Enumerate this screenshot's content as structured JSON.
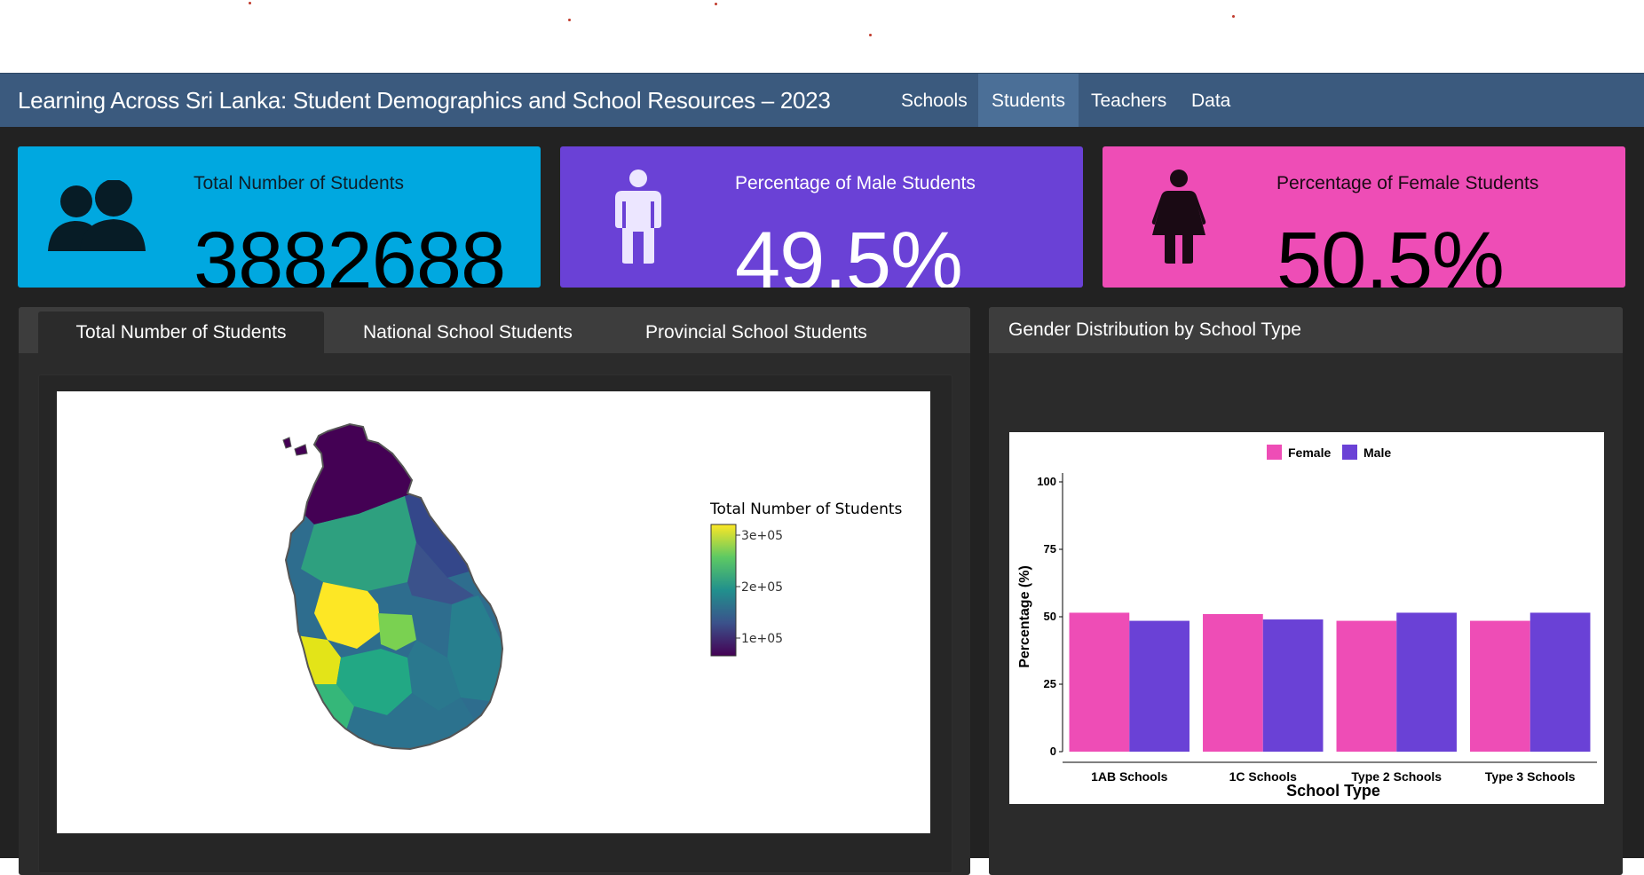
{
  "app": {
    "title": "Learning Across Sri Lanka: Student Demographics and School Resources – 2023",
    "nav": [
      "Schools",
      "Students",
      "Teachers",
      "Data"
    ],
    "active_nav": "Students"
  },
  "value_boxes": [
    {
      "title": "Total Number of Students",
      "value": "3882688",
      "color": "#00a8e0",
      "icon": "people-icon"
    },
    {
      "title": "Percentage of Male Students",
      "value": "49.5%",
      "color": "#6a41d6",
      "icon": "male-person-icon"
    },
    {
      "title": "Percentage of Female Students",
      "value": "50.5%",
      "color": "#ee4db6",
      "icon": "female-person-icon"
    }
  ],
  "map_panel": {
    "tabs": [
      "Total Number of Students",
      "National School Students",
      "Provincial School Students"
    ],
    "active_tab": "Total Number of Students",
    "legend_title": "Total Number of Students",
    "legend_ticks": [
      "3e+05",
      "2e+05",
      "1e+05"
    ]
  },
  "bar_panel": {
    "title": "Gender Distribution by School Type"
  },
  "chart_data": {
    "type": "bar",
    "categories": [
      "1AB Schools",
      "1C Schools",
      "Type 2 Schools",
      "Type 3 Schools"
    ],
    "series": [
      {
        "name": "Female",
        "values": [
          51.5,
          51,
          48.5,
          48.5
        ],
        "color": "#ee4db6"
      },
      {
        "name": "Male",
        "values": [
          48.5,
          49,
          51.5,
          51.5
        ],
        "color": "#6a41d6"
      }
    ],
    "xlabel": "School Type",
    "ylabel": "Percentage (%)",
    "ylim": [
      0,
      100
    ],
    "yticks": [
      0,
      25,
      50,
      75,
      100
    ],
    "legend_position": "top"
  }
}
